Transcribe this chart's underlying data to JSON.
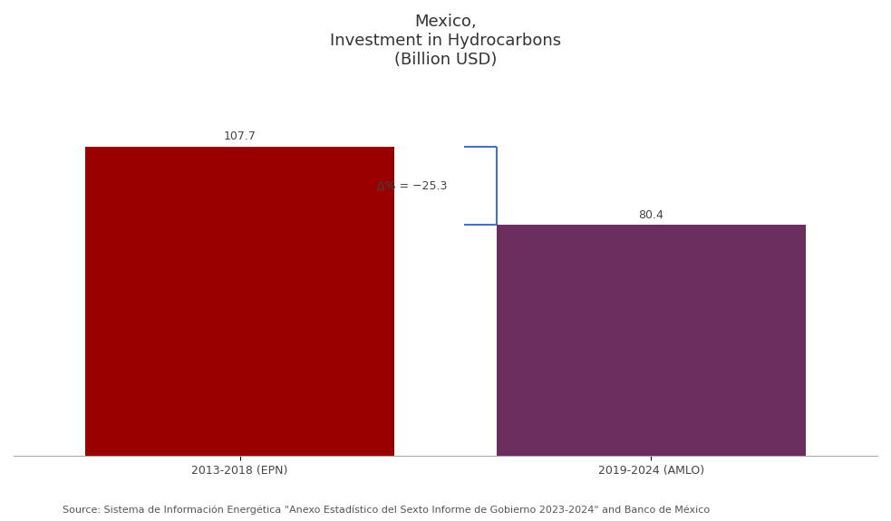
{
  "title": "Mexico,\nInvestment in Hydrocarbons\n(Billion USD)",
  "categories": [
    "2013-2018 (EPN)",
    "2019-2024 (AMLO)"
  ],
  "values": [
    107.7,
    80.4
  ],
  "bar_colors": [
    "#990000",
    "#6B2D5E"
  ],
  "delta_label": "Δ% = −25.3",
  "source_text": "Source: Sistema de Información Energética \"Anexo Estadístico del Sexto Informe de Gobierno 2023-2024\" and Banco de México",
  "ylim": [
    0,
    130
  ],
  "bar_width": 0.75,
  "title_fontsize": 13,
  "label_fontsize": 9,
  "source_fontsize": 8,
  "annotation_fontsize": 9,
  "background_color": "#ffffff"
}
